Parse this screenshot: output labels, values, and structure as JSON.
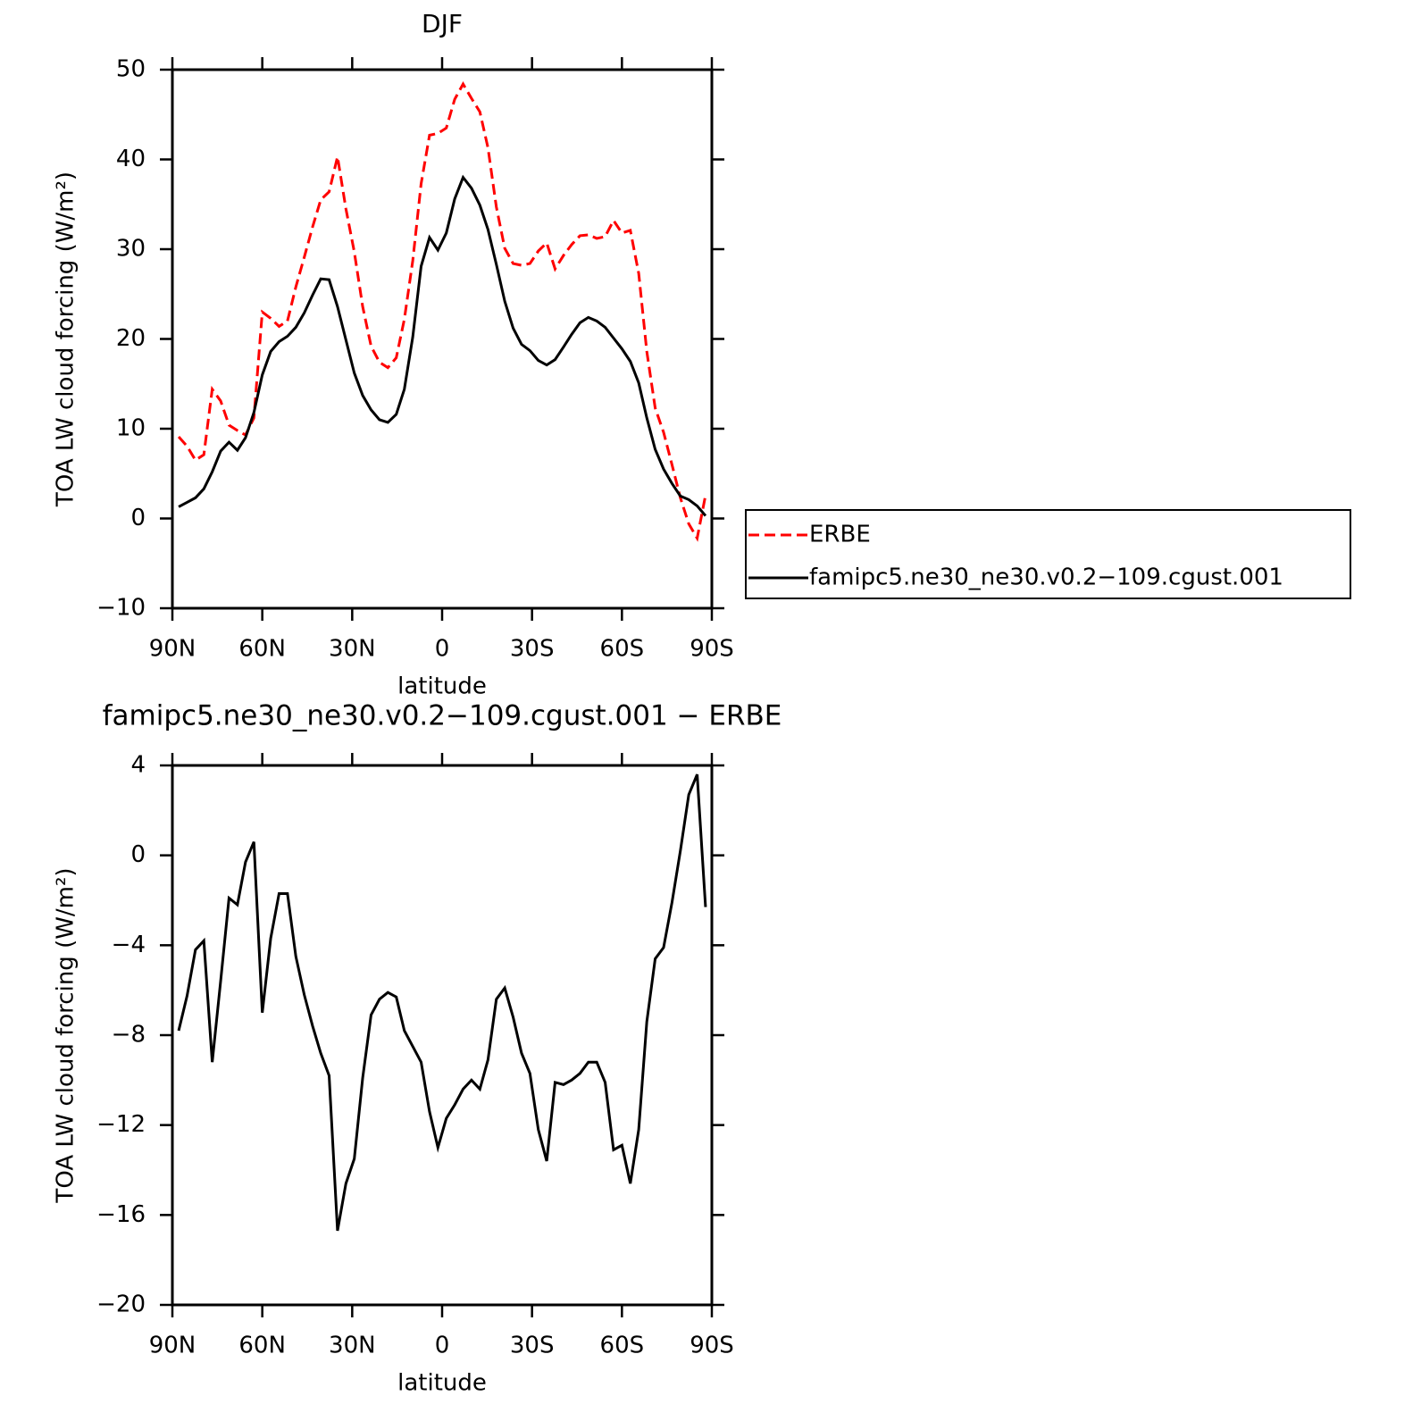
{
  "chart_data": [
    {
      "type": "line",
      "title": "DJF",
      "xlabel": "latitude",
      "ylabel": "TOA LW cloud forcing (W/m²)",
      "x": [
        87.9,
        85.1,
        82.3,
        79.5,
        76.7,
        73.9,
        71.1,
        68.3,
        65.6,
        62.8,
        60.0,
        57.2,
        54.4,
        51.6,
        48.8,
        46.0,
        43.2,
        40.5,
        37.7,
        34.9,
        32.1,
        29.3,
        26.5,
        23.7,
        20.9,
        18.1,
        15.3,
        12.6,
        9.8,
        7.0,
        4.2,
        1.4,
        -1.4,
        -4.2,
        -7.0,
        -9.8,
        -12.6,
        -15.3,
        -18.1,
        -20.9,
        -23.7,
        -26.5,
        -29.3,
        -32.1,
        -34.9,
        -37.7,
        -40.5,
        -43.2,
        -46.0,
        -48.8,
        -51.6,
        -54.4,
        -57.2,
        -60.0,
        -62.8,
        -65.6,
        -68.3,
        -71.1,
        -73.9,
        -76.7,
        -79.5,
        -82.3,
        -85.1,
        -87.9
      ],
      "series": [
        {
          "name": "ERBE",
          "color": "#ff0000",
          "linestyle": "dashed",
          "values": [
            9.1,
            8.05,
            6.5,
            7.1,
            14.4,
            13.1,
            10.4,
            9.8,
            9.3,
            11.2,
            23.0,
            22.3,
            21.4,
            22.0,
            25.8,
            29.1,
            32.5,
            35.5,
            36.4,
            40.3,
            34.5,
            29.7,
            23.6,
            19.2,
            17.4,
            16.8,
            17.9,
            22.2,
            28.7,
            37.3,
            42.7,
            42.9,
            43.5,
            46.7,
            48.4,
            46.8,
            45.3,
            41.3,
            34.7,
            30.1,
            28.4,
            28.2,
            28.4,
            29.8,
            30.7,
            27.8,
            29.3,
            30.5,
            31.5,
            31.6,
            31.2,
            31.4,
            33.2,
            31.8,
            32.1,
            27.3,
            18.6,
            12.3,
            9.6,
            6.0,
            2.3,
            -0.6,
            -2.2,
            2.6
          ]
        },
        {
          "name": "famipc5.ne30_ne30.v0.2−109.cgust.001",
          "color": "#000000",
          "linestyle": "solid",
          "values": [
            1.3,
            1.8,
            2.3,
            3.3,
            5.2,
            7.5,
            8.5,
            7.6,
            9.0,
            11.8,
            16.0,
            18.6,
            19.7,
            20.3,
            21.3,
            22.9,
            24.9,
            26.7,
            26.6,
            23.6,
            19.9,
            16.2,
            13.7,
            12.1,
            11.0,
            10.7,
            11.6,
            14.4,
            20.2,
            28.1,
            31.3,
            29.9,
            31.8,
            35.6,
            38.0,
            36.8,
            34.9,
            32.2,
            28.3,
            24.2,
            21.2,
            19.4,
            18.7,
            17.6,
            17.1,
            17.7,
            19.1,
            20.5,
            21.8,
            22.4,
            22.0,
            21.3,
            20.1,
            18.9,
            17.5,
            15.1,
            11.2,
            7.7,
            5.5,
            3.9,
            2.5,
            2.1,
            1.4,
            0.3
          ]
        }
      ],
      "xlim": [
        90,
        -90
      ],
      "xticks": [
        {
          "value": 90,
          "label": "90N"
        },
        {
          "value": 60,
          "label": "60N"
        },
        {
          "value": 30,
          "label": "30N"
        },
        0,
        {
          "value": -30,
          "label": "30S"
        },
        {
          "value": -60,
          "label": "60S"
        },
        {
          "value": -90,
          "label": "90S"
        }
      ],
      "ylim": [
        -10,
        50
      ],
      "yticks": [
        {
          "value": -10,
          "label": "−10"
        },
        0,
        10,
        20,
        30,
        40,
        50
      ],
      "legend": "outside-right"
    },
    {
      "type": "line",
      "title": "famipc5.ne30_ne30.v0.2−109.cgust.001 − ERBE",
      "xlabel": "latitude",
      "ylabel": "TOA LW cloud forcing (W/m²)",
      "x": [
        87.9,
        85.1,
        82.3,
        79.5,
        76.7,
        73.9,
        71.1,
        68.3,
        65.6,
        62.8,
        60.0,
        57.2,
        54.4,
        51.6,
        48.8,
        46.0,
        43.2,
        40.5,
        37.7,
        34.9,
        32.1,
        29.3,
        26.5,
        23.7,
        20.9,
        18.1,
        15.3,
        12.6,
        9.8,
        7.0,
        4.2,
        1.4,
        -1.4,
        -4.2,
        -7.0,
        -9.8,
        -12.6,
        -15.3,
        -18.1,
        -20.9,
        -23.7,
        -26.5,
        -29.3,
        -32.1,
        -34.9,
        -37.7,
        -40.5,
        -43.2,
        -46.0,
        -48.8,
        -51.6,
        -54.4,
        -57.2,
        -60.0,
        -62.8,
        -65.6,
        -68.3,
        -71.1,
        -73.9,
        -76.7,
        -79.5,
        -82.3,
        -85.1,
        -87.9
      ],
      "series": [
        {
          "color": "#000000",
          "linestyle": "solid",
          "values": [
            -7.8,
            -6.25,
            -4.2,
            -3.8,
            -9.2,
            -5.6,
            -1.9,
            -2.2,
            -0.3,
            0.6,
            -7.0,
            -3.7,
            -1.7,
            -1.7,
            -4.5,
            -6.2,
            -7.6,
            -8.8,
            -9.8,
            -16.7,
            -14.6,
            -13.5,
            -9.9,
            -7.1,
            -6.4,
            -6.1,
            -6.3,
            -7.8,
            -8.5,
            -9.2,
            -11.4,
            -13.0,
            -11.7,
            -11.1,
            -10.4,
            -10.0,
            -10.4,
            -9.1,
            -6.4,
            -5.9,
            -7.2,
            -8.8,
            -9.7,
            -12.2,
            -13.6,
            -10.1,
            -10.2,
            -10.0,
            -9.7,
            -9.2,
            -9.2,
            -10.1,
            -13.1,
            -12.9,
            -14.6,
            -12.2,
            -7.4,
            -4.6,
            -4.1,
            -2.1,
            0.2,
            2.7,
            3.6,
            -2.3
          ]
        }
      ],
      "xlim": [
        90,
        -90
      ],
      "xticks": [
        {
          "value": 90,
          "label": "90N"
        },
        {
          "value": 60,
          "label": "60N"
        },
        {
          "value": 30,
          "label": "30N"
        },
        0,
        {
          "value": -30,
          "label": "30S"
        },
        {
          "value": -60,
          "label": "60S"
        },
        {
          "value": -90,
          "label": "90S"
        }
      ],
      "ylim": [
        -20,
        4
      ],
      "yticks": [
        {
          "value": -20,
          "label": "−20"
        },
        {
          "value": -16,
          "label": "−16"
        },
        {
          "value": -12,
          "label": "−12"
        },
        {
          "value": -8,
          "label": "−8"
        },
        {
          "value": -4,
          "label": "−4"
        },
        0,
        4
      ]
    }
  ]
}
